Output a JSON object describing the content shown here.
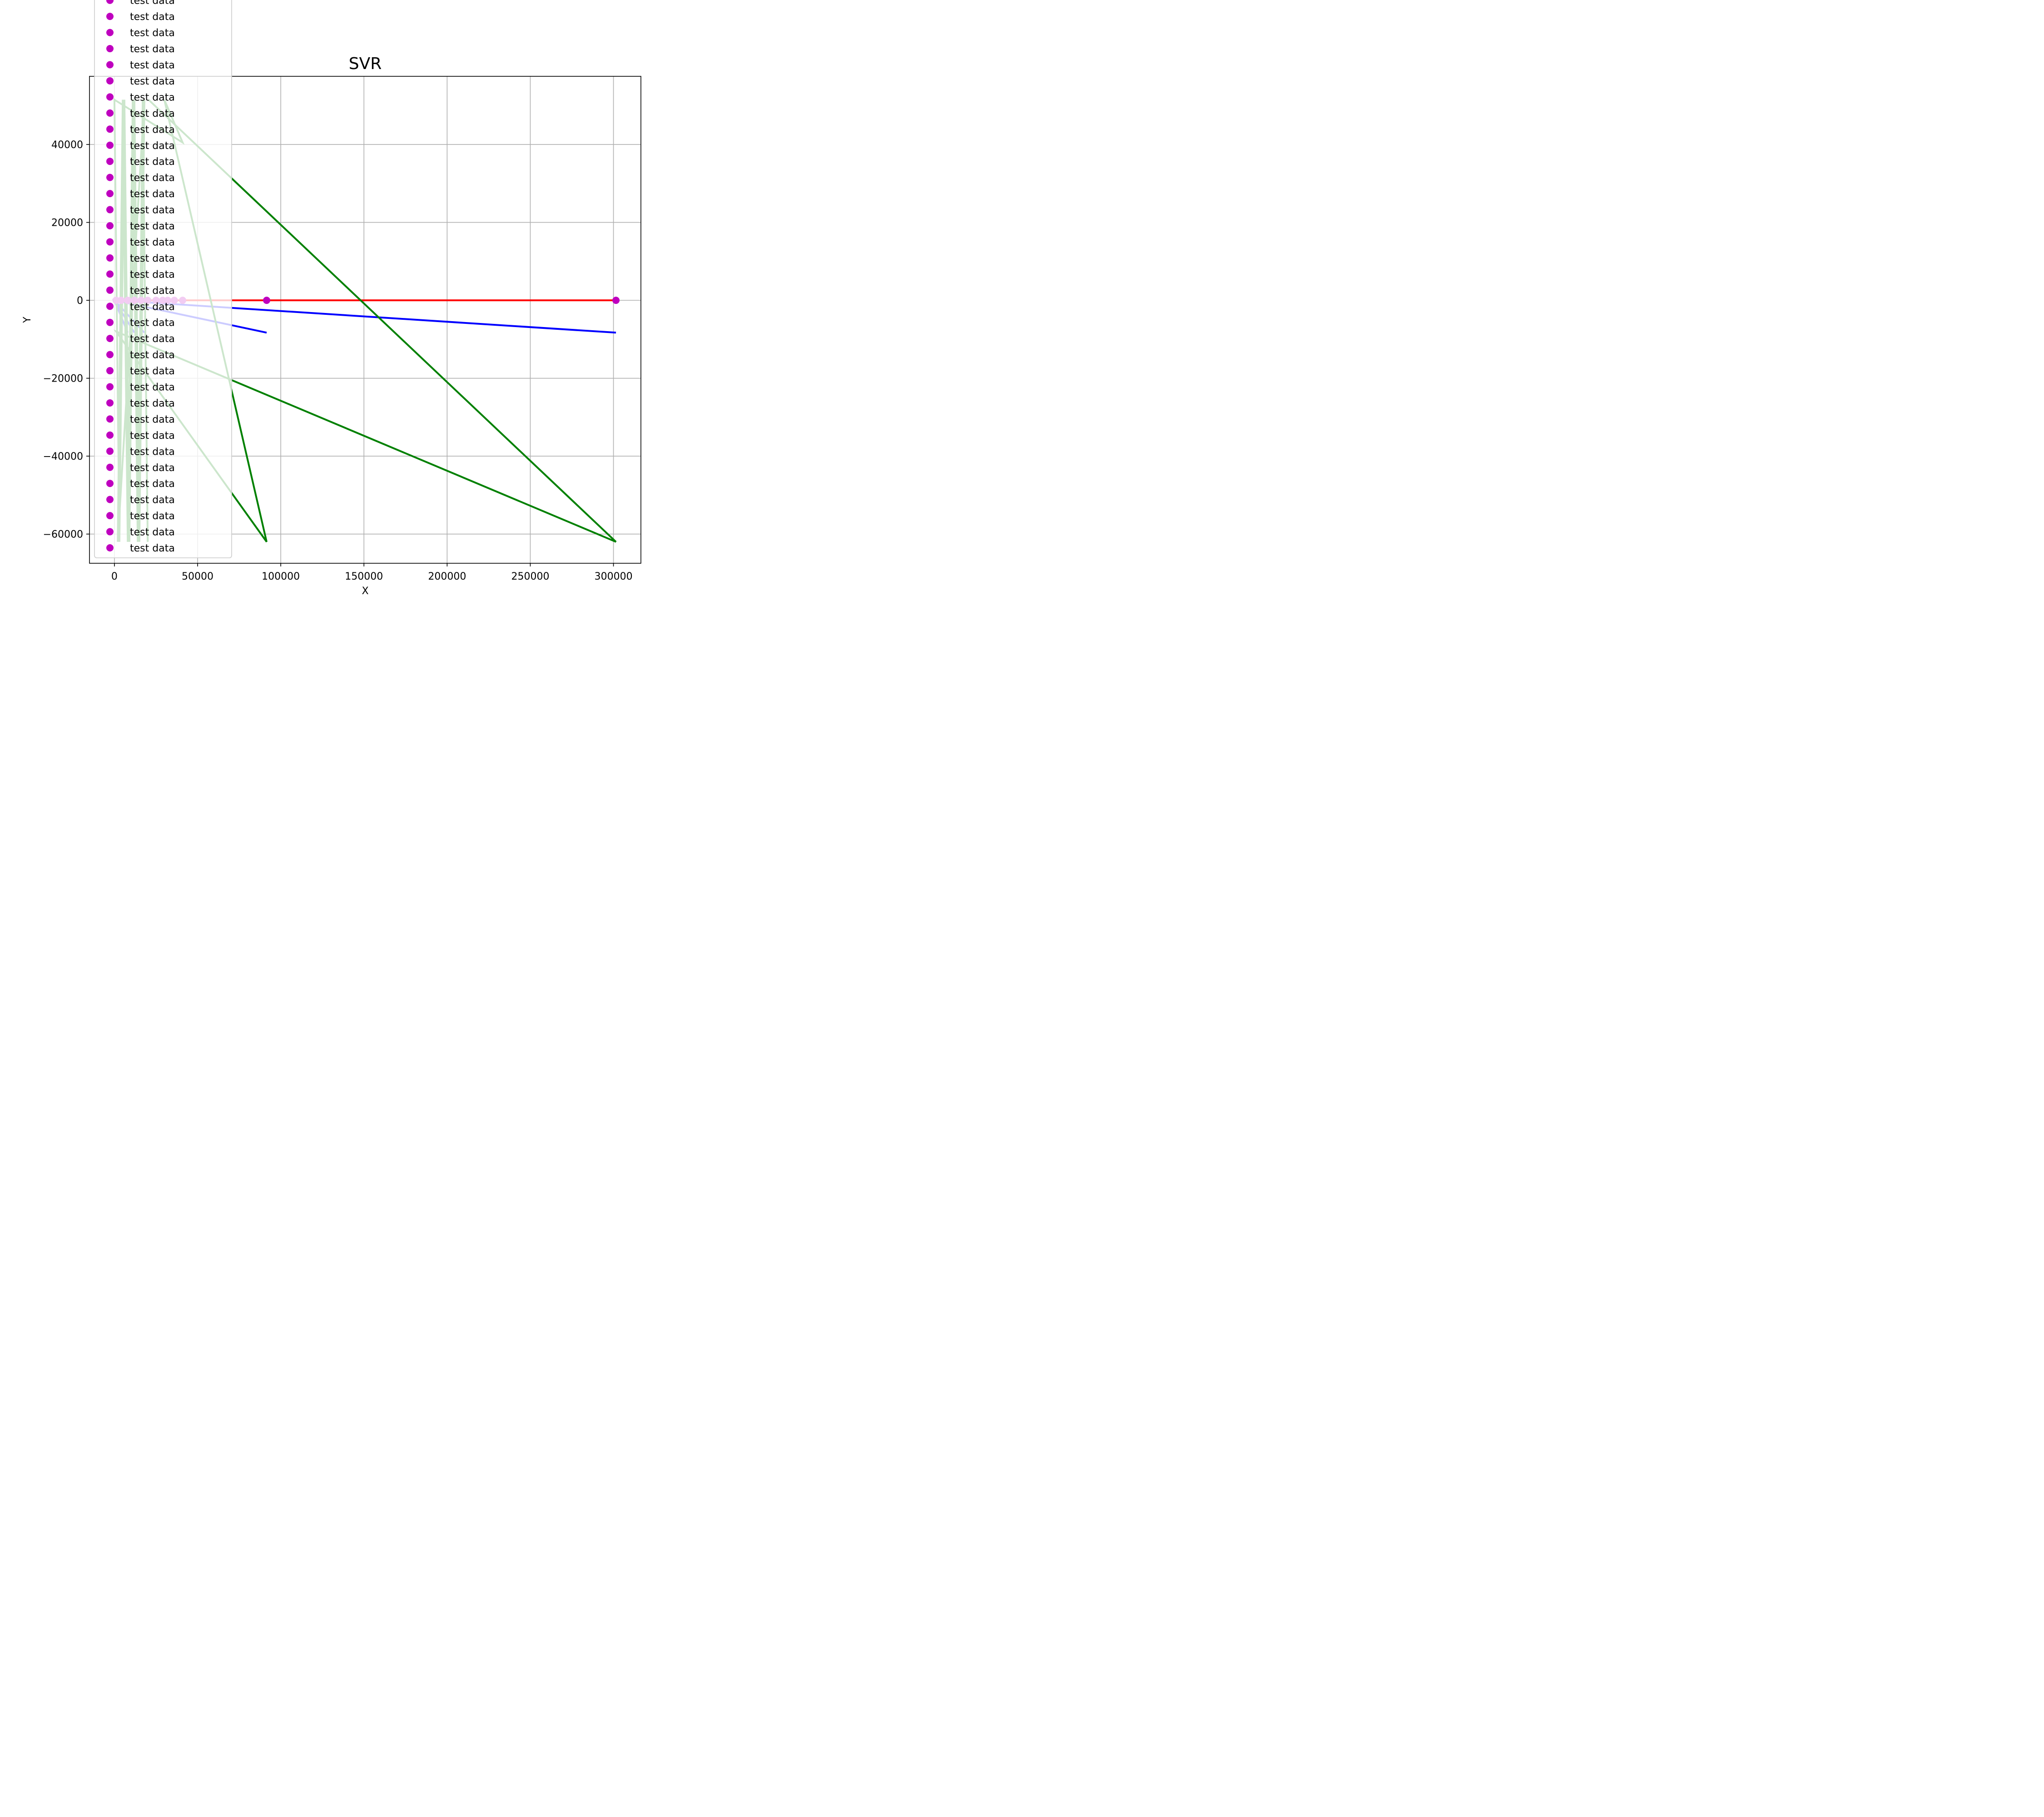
{
  "chart_data": {
    "type": "scatter",
    "title": "SVR",
    "xlabel": "X",
    "ylabel": "Y",
    "xlim": [
      -15000,
      316500
    ],
    "ylim": [
      -67500,
      57500
    ],
    "xticks": [
      0,
      50000,
      100000,
      150000,
      200000,
      250000,
      300000
    ],
    "xtick_labels": [
      "0",
      "50000",
      "100000",
      "150000",
      "200000",
      "250000",
      "300000"
    ],
    "yticks": [
      -60000,
      -40000,
      -20000,
      0,
      20000,
      40000
    ],
    "ytick_labels": [
      "−60000",
      "−40000",
      "−20000",
      "0",
      "20000",
      "40000"
    ],
    "grid": true,
    "legend_placement": "upper-left",
    "colors": {
      "test_points": "#bf00bf",
      "baseline_line": "#ff0000",
      "blue_line": "#0000ff",
      "green_line": "#008000",
      "grid": "#b0b0b0"
    },
    "series": [
      {
        "name": "test data",
        "marker": "circle",
        "color": "#bf00bf",
        "x": [
          91500,
          301500,
          41000,
          36000,
          32000,
          29000,
          25000,
          20000,
          16000,
          12000,
          8000,
          4000,
          1000
        ],
        "y": [
          0,
          0,
          0,
          0,
          0,
          0,
          0,
          0,
          0,
          0,
          0,
          0,
          0
        ]
      },
      {
        "color": "#ff0000",
        "style": "line",
        "x": [
          0,
          301500
        ],
        "y": [
          0,
          0
        ]
      },
      {
        "color": "#0000ff",
        "style": "line",
        "x": [
          0,
          301500,
          0,
          91500,
          0,
          18000,
          0,
          12000,
          0,
          8000,
          0
        ],
        "y": [
          0,
          -8300,
          0,
          -8300,
          0,
          -8300,
          0,
          -8300,
          0,
          -8300,
          0
        ]
      },
      {
        "color": "#008000",
        "style": "line",
        "x": [
          20500,
          301500,
          1000,
          91500,
          30000,
          41000,
          0,
          3000,
          6000,
          9000,
          12000,
          15000,
          18000,
          2000,
          5000,
          8000,
          11000,
          14000,
          17000,
          20000
        ],
        "y": [
          51500,
          -62000,
          -8000,
          -62000,
          51500,
          40500,
          51500,
          -62000,
          51500,
          -62000,
          51500,
          -62000,
          51500,
          -62000,
          51500,
          -62000,
          51500,
          -62000,
          51500,
          -62000
        ]
      }
    ],
    "legend": {
      "entries": [
        "test data",
        "test data",
        "test data",
        "test data",
        "test data",
        "test data",
        "test data",
        "test data",
        "test data",
        "test data",
        "test data",
        "test data",
        "test data",
        "test data",
        "test data",
        "test data",
        "test data",
        "test data",
        "test data",
        "test data",
        "test data",
        "test data",
        "test data",
        "test data",
        "test data",
        "test data",
        "test data",
        "test data",
        "test data",
        "test data",
        "test data",
        "test data",
        "test data",
        "test data",
        "test data"
      ],
      "marker_color": "#bf00bf"
    }
  }
}
